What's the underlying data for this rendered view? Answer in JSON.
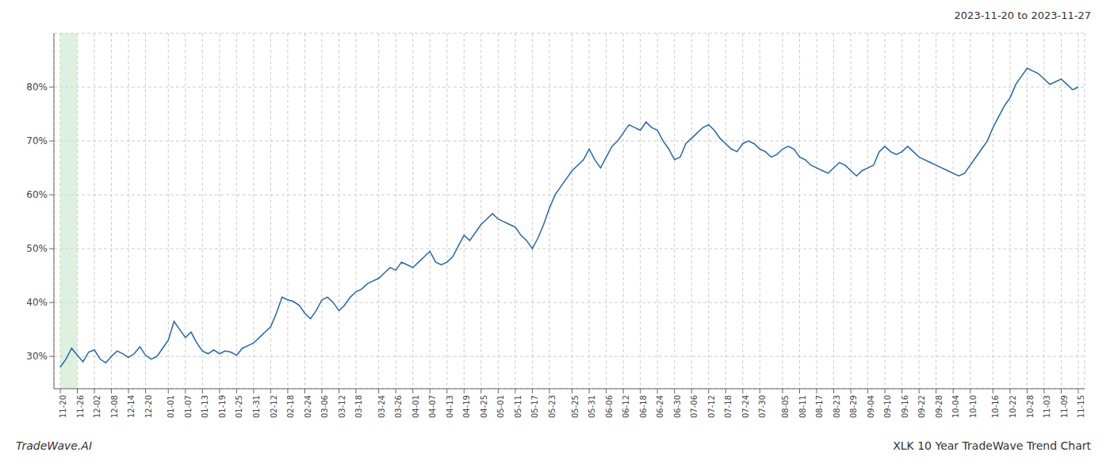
{
  "chart_data": {
    "type": "line",
    "title": "2023-11-20 to 2023-11-27",
    "annotations": [
      "TradeWave.AI",
      "XLK 10 Year TradeWave Trend Chart"
    ],
    "categories": [
      "11-20",
      null,
      null,
      "11-26",
      null,
      null,
      "12-02",
      null,
      null,
      "12-08",
      null,
      null,
      "12-14",
      null,
      null,
      "12-20",
      null,
      null,
      null,
      "01-01",
      null,
      null,
      "01-07",
      null,
      null,
      "01-13",
      null,
      null,
      "01-19",
      null,
      null,
      "01-25",
      null,
      null,
      "01-31",
      null,
      null,
      "02-12",
      null,
      null,
      "02-18",
      null,
      null,
      "02-24",
      null,
      null,
      "03-06",
      null,
      null,
      "03-12",
      null,
      null,
      "03-18",
      null,
      null,
      null,
      "03-24",
      null,
      null,
      "03-26",
      null,
      null,
      "04-01",
      null,
      null,
      "04-07",
      null,
      null,
      "04-13",
      null,
      null,
      "04-19",
      null,
      null,
      "04-25",
      null,
      null,
      "05-01",
      null,
      null,
      "05-11",
      null,
      null,
      "05-17",
      null,
      null,
      "05-23",
      null,
      null,
      null,
      "05-25",
      null,
      null,
      "05-31",
      null,
      null,
      "06-06",
      null,
      null,
      "06-12",
      null,
      null,
      "06-18",
      null,
      null,
      "06-24",
      null,
      null,
      "06-30",
      null,
      null,
      "07-06",
      null,
      null,
      "07-12",
      null,
      null,
      "07-18",
      null,
      null,
      "07-24",
      null,
      null,
      "07-30",
      null,
      null,
      null,
      "08-05",
      null,
      null,
      "08-11",
      null,
      null,
      "08-17",
      null,
      null,
      "08-23",
      null,
      null,
      "08-29",
      null,
      null,
      "09-04",
      null,
      null,
      "09-10",
      null,
      null,
      "09-16",
      null,
      null,
      "09-22",
      null,
      null,
      "09-28",
      null,
      null,
      "10-04",
      null,
      null,
      "10-10",
      null,
      null,
      null,
      "10-16",
      null,
      null,
      "10-22",
      null,
      null,
      "10-28",
      null,
      null,
      "11-03",
      null,
      null,
      "11-09",
      null,
      null,
      "11-15"
    ],
    "values": [
      28.0,
      29.5,
      31.5,
      30.2,
      29.0,
      30.8,
      31.2,
      29.5,
      28.8,
      30.0,
      31.0,
      30.5,
      29.8,
      30.5,
      31.8,
      30.2,
      29.5,
      30.0,
      31.5,
      33.0,
      36.5,
      35.0,
      33.5,
      34.5,
      32.5,
      31.0,
      30.5,
      31.2,
      30.5,
      31.0,
      30.8,
      30.2,
      31.5,
      32.0,
      32.5,
      33.5,
      34.5,
      35.5,
      38.0,
      41.0,
      40.5,
      40.2,
      39.5,
      38.0,
      37.0,
      38.5,
      40.5,
      41.0,
      40.0,
      38.5,
      39.5,
      41.0,
      42.0,
      42.5,
      43.5,
      44.0,
      44.5,
      45.5,
      46.5,
      46.0,
      47.5,
      47.0,
      46.5,
      47.5,
      48.5,
      49.5,
      47.5,
      47.0,
      47.5,
      48.5,
      50.5,
      52.5,
      51.5,
      53.0,
      54.5,
      55.5,
      56.5,
      55.5,
      55.0,
      54.5,
      54.0,
      52.5,
      51.5,
      50.0,
      52.0,
      54.5,
      57.5,
      60.0,
      61.5,
      63.0,
      64.5,
      65.5,
      66.5,
      68.5,
      66.5,
      65.0,
      67.0,
      69.0,
      70.0,
      71.5,
      73.0,
      72.5,
      72.0,
      73.5,
      72.5,
      72.0,
      70.0,
      68.5,
      66.5,
      67.0,
      69.5,
      70.5,
      71.5,
      72.5,
      73.0,
      72.0,
      70.5,
      69.5,
      68.5,
      68.0,
      69.5,
      70.0,
      69.5,
      68.5,
      68.0,
      67.0,
      67.5,
      68.5,
      69.0,
      68.5,
      67.0,
      66.5,
      65.5,
      65.0,
      64.5,
      64.0,
      65.0,
      66.0,
      65.5,
      64.5,
      63.5,
      64.5,
      65.0,
      65.5,
      68.0,
      69.0,
      68.0,
      67.5,
      68.0,
      69.0,
      68.0,
      67.0,
      66.5,
      66.0,
      65.5,
      65.0,
      64.5,
      64.0,
      63.5,
      64.0,
      65.5,
      67.0,
      68.5,
      70.0,
      72.5,
      74.5,
      76.5,
      78.0,
      80.5,
      82.0,
      83.5,
      83.0,
      82.5,
      81.5,
      80.5,
      81.0,
      81.5,
      80.5,
      79.5,
      80.0
    ],
    "color": "#2166b0",
    "highlight": {
      "start": "11-20",
      "end": "11-26",
      "color": "#c8e6c8"
    },
    "ylim": [
      24,
      90
    ],
    "yticks": [
      {
        "value": 30,
        "label": "30%"
      },
      {
        "value": 40,
        "label": "40%"
      },
      {
        "value": 50,
        "label": "50%"
      },
      {
        "value": 60,
        "label": "60%"
      },
      {
        "value": 70,
        "label": "70%"
      },
      {
        "value": 80,
        "label": "80%"
      }
    ],
    "grid": true
  }
}
